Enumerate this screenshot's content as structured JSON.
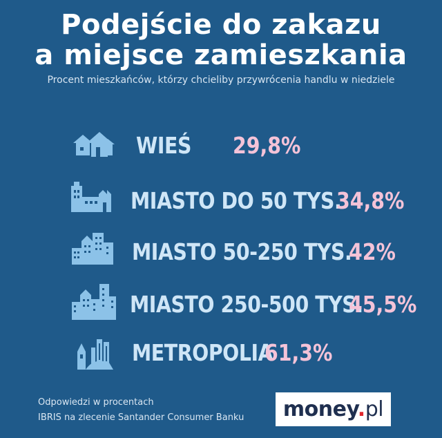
{
  "header": {
    "title_line1": "Podejście do zakazu",
    "title_line2": "a miejsce zamieszkania",
    "subtitle": "Procent mieszkańców, którzy chcieliby przywrócenia handlu w niedziele"
  },
  "chart_data": {
    "type": "table",
    "categories": [
      "WIEŚ",
      "MIASTO DO 50 TYS.",
      "MIASTO 50-250 TYS.",
      "MIASTO 250-500 TYS.",
      "METROPOLIA"
    ],
    "values": [
      29.8,
      34.8,
      42,
      45.5,
      61.3
    ],
    "value_labels": [
      "29,8%",
      "34,8%",
      "42%",
      "45,5%",
      "61,3%"
    ],
    "title": "Podejście do zakazu a miejsce zamieszkania",
    "icons": [
      "village-houses-icon",
      "small-town-icon",
      "medium-city-icon",
      "large-city-icon",
      "metropolis-icon"
    ]
  },
  "footer": {
    "note_line1": "Odpowiedzi w procentach",
    "note_line2": "IBRIS na zlecenie Santander Consumer Banku",
    "logo_text": "money",
    "logo_dot": ".",
    "logo_suffix": "pl"
  },
  "colors": {
    "background": "#1f5a8a",
    "label": "#cfe6f7",
    "value": "#f4c3d8",
    "icon": "#8cc2e8"
  }
}
